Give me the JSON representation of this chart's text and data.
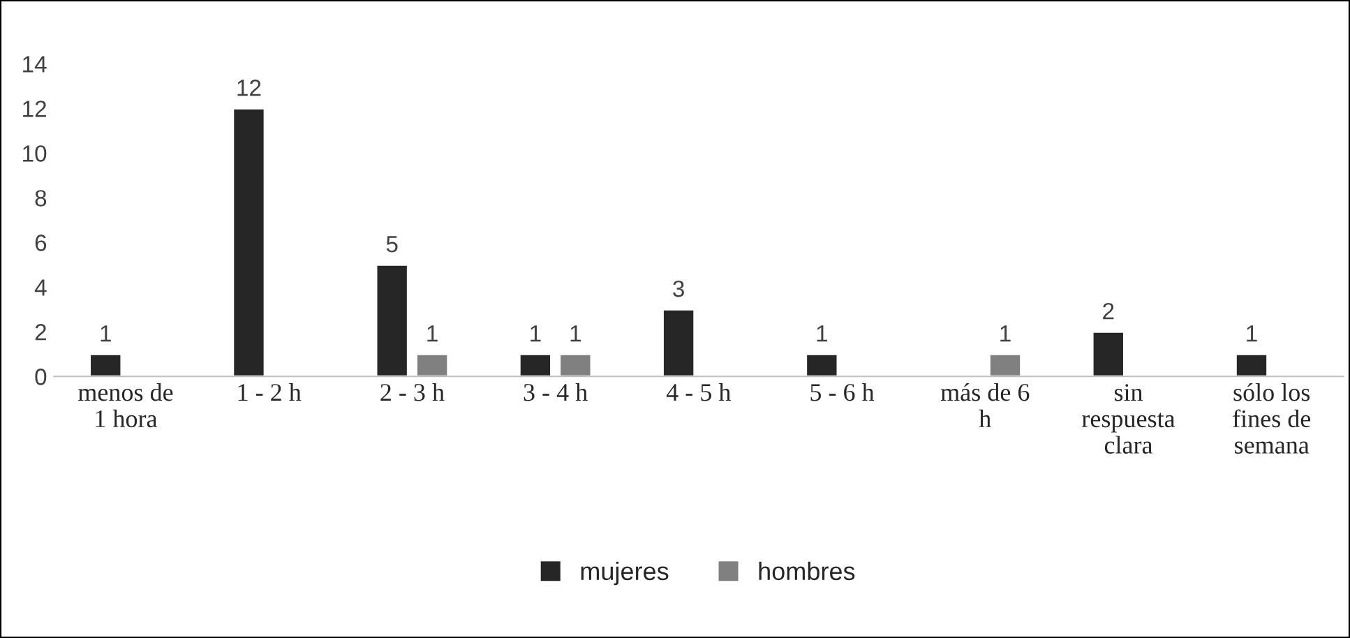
{
  "chart_data": {
    "type": "bar",
    "categories": [
      "menos de\n1 hora",
      "1 - 2 h",
      "2 - 3 h",
      "3 - 4 h",
      "4 - 5 h",
      "5 - 6 h",
      "más de 6\nh",
      "sin\nrespuesta\nclara",
      "sólo los\nfines de\nsemana"
    ],
    "series": [
      {
        "name": "mujeres",
        "color": "#262626",
        "values": [
          1,
          12,
          5,
          1,
          3,
          1,
          null,
          2,
          1
        ]
      },
      {
        "name": "hombres",
        "color": "#808080",
        "values": [
          null,
          null,
          1,
          1,
          null,
          null,
          1,
          null,
          null
        ]
      }
    ],
    "ylim": [
      0,
      14
    ],
    "yticks": [
      0,
      2,
      4,
      6,
      8,
      10,
      12,
      14
    ],
    "grid": false,
    "legend": "bottom",
    "data_labels": true
  }
}
